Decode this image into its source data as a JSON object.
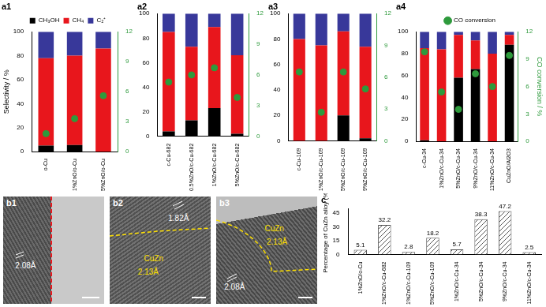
{
  "chart_data": [
    {
      "title": "a1",
      "type": "bar",
      "stacked": true,
      "grid": false,
      "legend": "top",
      "categories": [
        "o-Cu",
        "1%ZnO/o-Cu",
        "5%ZnO/o-Cu"
      ],
      "series": [
        {
          "name": "CH₃OH",
          "color": "#000000",
          "values": [
            5,
            5.5,
            0
          ]
        },
        {
          "name": "CH₄",
          "color": "#e8161c",
          "values": [
            73,
            74.5,
            86
          ]
        },
        {
          "name": "C₂⁺",
          "color": "#38389a",
          "values": [
            22,
            20,
            14
          ]
        },
        {
          "name": "CO conversion",
          "type": "scatter",
          "marker": "circle",
          "color": "#2e9a3c",
          "axis": "y2",
          "values": [
            1.8,
            3.3,
            5.6
          ]
        }
      ],
      "y_label": "Selectivity / %",
      "ylim": [
        0,
        100
      ],
      "yticks": [
        0,
        20,
        40,
        60,
        80,
        100
      ],
      "y2lim": [
        0,
        12
      ],
      "y2ticks": [
        0,
        3,
        6,
        9,
        12
      ]
    },
    {
      "title": "a2",
      "type": "bar",
      "stacked": true,
      "grid": false,
      "categories": [
        "c-Cu-682",
        "0.5%ZnO/c-Cu-682",
        "1%ZnO/c-Cu-682",
        "5%ZnO/c-Cu-682"
      ],
      "series": [
        {
          "name": "CH₃OH",
          "color": "#000000",
          "values": [
            4,
            13,
            23,
            2
          ]
        },
        {
          "name": "CH₄",
          "color": "#e8161c",
          "values": [
            81,
            60,
            66,
            64
          ]
        },
        {
          "name": "C₂⁺",
          "color": "#38389a",
          "values": [
            15,
            27,
            11,
            34
          ]
        },
        {
          "name": "CO conversion",
          "type": "scatter",
          "marker": "circle",
          "color": "#2e9a3c",
          "axis": "y2",
          "values": [
            5.3,
            6.0,
            6.7,
            3.8
          ]
        }
      ],
      "ylim": [
        0,
        100
      ],
      "yticks": [
        0,
        20,
        40,
        60,
        80,
        100
      ],
      "y2lim": [
        0,
        12
      ],
      "y2ticks": [
        0,
        3,
        6,
        9,
        12
      ]
    },
    {
      "title": "a3",
      "type": "bar",
      "stacked": true,
      "grid": false,
      "categories": [
        "c-Cu-109",
        "1%ZnO/c-Cu-109",
        "5%ZnO/c-Cu-109",
        "9%ZnO/c-Cu-109"
      ],
      "series": [
        {
          "name": "CH₃OH",
          "color": "#000000",
          "values": [
            0,
            0,
            20,
            2
          ]
        },
        {
          "name": "CH₄",
          "color": "#e8161c",
          "values": [
            80,
            75,
            66,
            72
          ]
        },
        {
          "name": "C₂⁺",
          "color": "#38389a",
          "values": [
            20,
            25,
            14,
            26
          ]
        },
        {
          "name": "CO conversion",
          "type": "scatter",
          "marker": "circle",
          "color": "#2e9a3c",
          "axis": "y2",
          "values": [
            6.5,
            2.7,
            6.5,
            4.9
          ]
        }
      ],
      "ylim": [
        0,
        100
      ],
      "yticks": [
        0,
        20,
        40,
        60,
        80,
        100
      ],
      "y2lim": [
        0,
        12
      ],
      "y2ticks": [
        0,
        3,
        6,
        9,
        12
      ]
    },
    {
      "title": "a4",
      "type": "bar",
      "stacked": true,
      "grid": false,
      "legend": "top",
      "categories": [
        "c-Cu-34",
        "1%ZnO/c-Cu-34",
        "5%ZnO/c-Cu-34",
        "9%ZnO/c-Cu-34",
        "11%ZnO/c-Cu-34",
        "CuZnO/Al2O3"
      ],
      "series": [
        {
          "name": "CH₃OH",
          "color": "#000000",
          "values": [
            1,
            0,
            58,
            66,
            0,
            88
          ]
        },
        {
          "name": "CH₄",
          "color": "#e8161c",
          "values": [
            84,
            84,
            39,
            26,
            80,
            9
          ]
        },
        {
          "name": "C₂⁺",
          "color": "#38389a",
          "values": [
            15,
            16,
            3,
            8,
            20,
            3
          ]
        },
        {
          "name": "CO conversion",
          "type": "scatter",
          "marker": "circle",
          "color": "#2e9a3c",
          "axis": "y2",
          "values": [
            9.8,
            5.4,
            3.5,
            7.4,
            6.0,
            9.4
          ]
        }
      ],
      "ylim": [
        0,
        100
      ],
      "yticks": [
        0,
        20,
        40,
        60,
        80,
        100
      ],
      "y2_label": "CO conversion / %",
      "y2lim": [
        0,
        12
      ],
      "y2ticks": [
        0,
        3,
        6,
        9,
        12
      ]
    },
    {
      "title": "c",
      "type": "bar",
      "grid": false,
      "data_labels": true,
      "color": "#555555",
      "categories": [
        "1%ZnO/o-Cu",
        "1%ZnO/c-Cu-682",
        "1%ZnO/c-Cu-109",
        "5%ZnO/c-Cu-109",
        "1%ZnO/c-Cu-34",
        "5%ZnO/c-Cu-34",
        "9%ZnO/c-Cu-34",
        "11%ZnO/c-Cu-34"
      ],
      "values": [
        5.1,
        32.2,
        2.8,
        18.2,
        5.7,
        38.3,
        47.2,
        2.5
      ],
      "y_label": "Percentage of CuZn alloy (%)",
      "ylim": [
        0,
        50
      ],
      "yticks": [
        0,
        15,
        30,
        45
      ]
    }
  ],
  "images": [
    {
      "label": "b1",
      "annotations": [
        {
          "text": "2.08Å",
          "color": "#ffffff"
        }
      ]
    },
    {
      "label": "b2",
      "annotations": [
        {
          "text": "1.82Å",
          "color": "#ffffff"
        },
        {
          "text": "2.13Å",
          "color": "#ffe000"
        },
        {
          "text": "CuZn",
          "color": "#ffe000"
        }
      ]
    },
    {
      "label": "b3",
      "annotations": [
        {
          "text": "CuZn",
          "color": "#ffe000"
        },
        {
          "text": "2.13Å",
          "color": "#ffe000"
        },
        {
          "text": "2.08Å",
          "color": "#ffffff"
        }
      ]
    }
  ]
}
